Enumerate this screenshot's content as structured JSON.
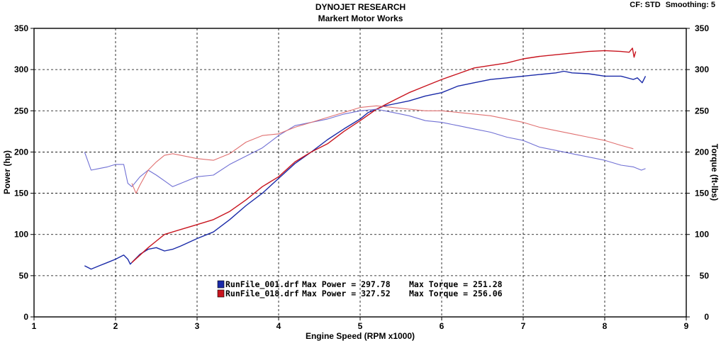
{
  "header": {
    "title": "DYNOJET RESEARCH",
    "subtitle": "Markert Motor Works",
    "cf_label": "CF: STD",
    "smoothing_label": "Smoothing: 5"
  },
  "chart_data": {
    "type": "line",
    "title": "DYNOJET RESEARCH",
    "subtitle": "Markert Motor Works",
    "xlabel": "Engine Speed (RPM x1000)",
    "ylabel_left": "Power (hp)",
    "ylabel_right": "Torque (ft-lbs)",
    "xlim": [
      1,
      9
    ],
    "ylim": [
      0,
      350
    ],
    "x_ticks": [
      1,
      2,
      3,
      4,
      5,
      6,
      7,
      8,
      9
    ],
    "y_ticks": [
      0,
      50,
      100,
      150,
      200,
      250,
      300,
      350
    ],
    "grid": true,
    "legend_position": "bottom-center",
    "legend": [
      {
        "file": "RunFile_001.drf",
        "color": "#1a2aa8",
        "max_power_label": "Max Power = 297.78",
        "max_torque_label": "Max Torque = 251.28"
      },
      {
        "file": "RunFile_018.drf",
        "color": "#c8141e",
        "max_power_label": "Max Power = 327.52",
        "max_torque_label": "Max Torque = 256.06"
      }
    ],
    "series": [
      {
        "name": "RunFile_001.drf Power",
        "color": "#1a2aa8",
        "width": 1.4,
        "x": [
          1.62,
          1.7,
          1.8,
          1.9,
          2.0,
          2.1,
          2.15,
          2.18,
          2.22,
          2.3,
          2.4,
          2.5,
          2.6,
          2.7,
          2.8,
          3.0,
          3.2,
          3.4,
          3.6,
          3.8,
          4.0,
          4.2,
          4.4,
          4.6,
          4.8,
          5.0,
          5.1,
          5.2,
          5.3,
          5.4,
          5.6,
          5.8,
          6.0,
          6.2,
          6.4,
          6.6,
          6.8,
          7.0,
          7.2,
          7.4,
          7.5,
          7.6,
          7.8,
          8.0,
          8.2,
          8.35,
          8.4,
          8.46,
          8.5
        ],
        "y": [
          62,
          58,
          62,
          66,
          70,
          75,
          70,
          64,
          68,
          76,
          82,
          84,
          80,
          82,
          86,
          95,
          103,
          118,
          135,
          150,
          168,
          186,
          200,
          215,
          228,
          240,
          248,
          252,
          256,
          258,
          262,
          268,
          272,
          280,
          284,
          288,
          290,
          292,
          294,
          296,
          298,
          296,
          295,
          292,
          292,
          288,
          290,
          284,
          292
        ]
      },
      {
        "name": "RunFile_018.drf Power",
        "color": "#c8141e",
        "width": 1.4,
        "x": [
          2.2,
          2.3,
          2.4,
          2.5,
          2.6,
          2.8,
          3.0,
          3.2,
          3.4,
          3.6,
          3.8,
          4.0,
          4.2,
          4.4,
          4.6,
          4.8,
          5.0,
          5.2,
          5.4,
          5.6,
          5.8,
          6.0,
          6.2,
          6.4,
          6.6,
          6.8,
          7.0,
          7.2,
          7.4,
          7.6,
          7.8,
          8.0,
          8.2,
          8.3,
          8.34,
          8.36,
          8.38
        ],
        "y": [
          66,
          75,
          84,
          92,
          100,
          106,
          112,
          118,
          128,
          142,
          158,
          170,
          188,
          200,
          210,
          225,
          238,
          252,
          262,
          272,
          280,
          288,
          295,
          302,
          305,
          308,
          313,
          316,
          318,
          320,
          322,
          323,
          322,
          321,
          326,
          315,
          322
        ]
      },
      {
        "name": "RunFile_001.drf Torque",
        "color": "#7070d4",
        "width": 1.1,
        "x": [
          1.62,
          1.7,
          1.8,
          1.9,
          2.0,
          2.1,
          2.15,
          2.2,
          2.3,
          2.4,
          2.5,
          2.6,
          2.7,
          2.8,
          3.0,
          3.2,
          3.4,
          3.6,
          3.8,
          4.0,
          4.2,
          4.4,
          4.6,
          4.8,
          5.0,
          5.2,
          5.4,
          5.6,
          5.8,
          6.0,
          6.2,
          6.4,
          6.6,
          6.8,
          7.0,
          7.2,
          7.4,
          7.6,
          7.8,
          8.0,
          8.2,
          8.35,
          8.45,
          8.5
        ],
        "y": [
          200,
          178,
          180,
          182,
          185,
          185,
          162,
          158,
          170,
          178,
          172,
          165,
          158,
          162,
          170,
          172,
          185,
          195,
          205,
          220,
          232,
          236,
          240,
          246,
          250,
          252,
          248,
          244,
          238,
          236,
          232,
          228,
          224,
          218,
          214,
          206,
          202,
          198,
          194,
          190,
          184,
          182,
          178,
          180
        ]
      },
      {
        "name": "RunFile_018.drf Torque",
        "color": "#e07070",
        "width": 1.1,
        "x": [
          2.2,
          2.25,
          2.3,
          2.4,
          2.5,
          2.6,
          2.7,
          2.8,
          3.0,
          3.2,
          3.4,
          3.6,
          3.8,
          4.0,
          4.2,
          4.4,
          4.6,
          4.8,
          5.0,
          5.2,
          5.4,
          5.6,
          5.8,
          6.0,
          6.2,
          6.4,
          6.6,
          6.8,
          7.0,
          7.2,
          7.4,
          7.6,
          7.8,
          8.0,
          8.2,
          8.35
        ],
        "y": [
          162,
          150,
          160,
          178,
          188,
          196,
          198,
          196,
          192,
          190,
          198,
          212,
          220,
          222,
          230,
          236,
          242,
          248,
          254,
          256,
          254,
          252,
          250,
          250,
          248,
          246,
          244,
          240,
          236,
          230,
          226,
          222,
          218,
          214,
          208,
          204
        ]
      }
    ]
  }
}
